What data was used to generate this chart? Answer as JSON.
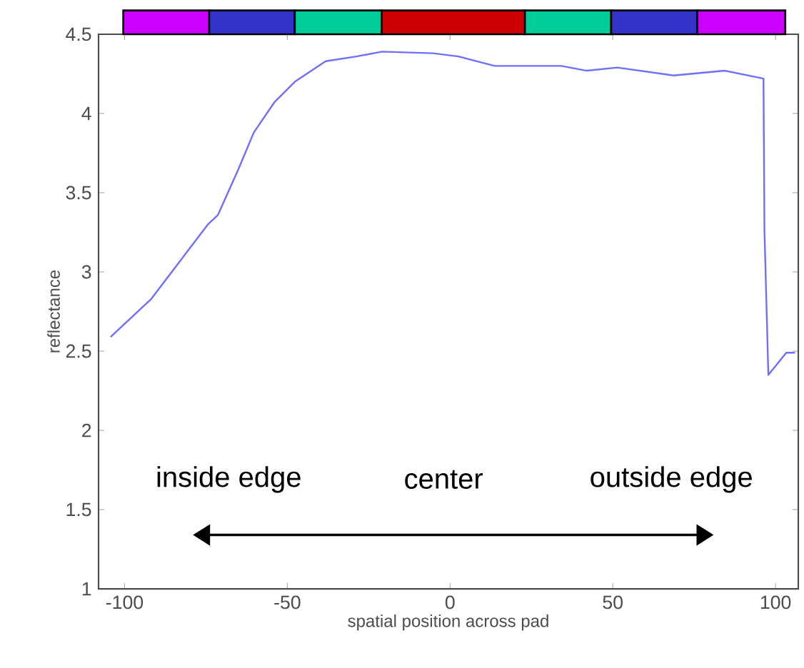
{
  "chart_data": {
    "type": "line",
    "xlabel": "spatial position across pad",
    "ylabel": "reflectance",
    "x": [
      -104.3,
      -91.8,
      -74.4,
      -71.3,
      -65,
      -60.3,
      -54,
      -47.7,
      -38.2,
      -28.8,
      -20.9,
      -5.2,
      2.6,
      13.7,
      34.2,
      42,
      51.4,
      68.7,
      84.4,
      96.3,
      96.6,
      97.8,
      103.3,
      106
    ],
    "values": [
      2.59,
      2.83,
      3.3,
      3.36,
      3.65,
      3.88,
      4.07,
      4.2,
      4.33,
      4.36,
      4.39,
      4.38,
      4.36,
      4.3,
      4.3,
      4.27,
      4.29,
      4.24,
      4.27,
      4.22,
      3.26,
      2.35,
      2.49,
      2.49
    ],
    "color": "#6f6fff",
    "xlim": [
      -108,
      107
    ],
    "ylim": [
      1,
      4.5
    ],
    "xticks": [
      -100,
      -50,
      0,
      50,
      100
    ],
    "yticks": [
      1,
      1.5,
      2,
      2.5,
      3,
      3.5,
      4,
      4.5
    ],
    "annotations": [
      "inside edge",
      "center",
      "outside edge"
    ]
  }
}
